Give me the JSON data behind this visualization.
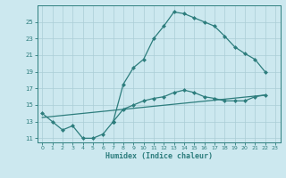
{
  "xlabel": "Humidex (Indice chaleur)",
  "bg_color": "#cce8ef",
  "grid_color": "#aacdd6",
  "line_color": "#2d7d7d",
  "line1_x": [
    0,
    1,
    2,
    3,
    4,
    5,
    6,
    7
  ],
  "line1_y": [
    14.0,
    13.0,
    12.0,
    12.5,
    11.0,
    11.0,
    11.5,
    13.0
  ],
  "line2_x": [
    7,
    8,
    9,
    10,
    11,
    12,
    13,
    14,
    15,
    16,
    17,
    18,
    19,
    20,
    21,
    22
  ],
  "line2_y": [
    13.0,
    17.5,
    19.5,
    20.5,
    23.0,
    24.5,
    26.2,
    26.0,
    25.5,
    25.0,
    24.5,
    23.3,
    22.0,
    21.2,
    20.5,
    19.0
  ],
  "line3_x": [
    7,
    8,
    9,
    10,
    11,
    12,
    13,
    14,
    15,
    16,
    17,
    18,
    19,
    20,
    21,
    22
  ],
  "line3_y": [
    13.0,
    14.5,
    15.0,
    15.5,
    15.8,
    16.0,
    16.5,
    16.8,
    16.5,
    16.0,
    15.8,
    15.5,
    15.5,
    15.5,
    16.0,
    16.2
  ],
  "line4_x": [
    0,
    22
  ],
  "line4_y": [
    13.5,
    16.2
  ],
  "ylim": [
    10.5,
    27.0
  ],
  "xlim": [
    -0.5,
    23.5
  ],
  "yticks": [
    11,
    13,
    15,
    17,
    19,
    21,
    23,
    25
  ],
  "xticks": [
    0,
    1,
    2,
    3,
    4,
    5,
    6,
    7,
    8,
    9,
    10,
    11,
    12,
    13,
    14,
    15,
    16,
    17,
    18,
    19,
    20,
    21,
    22,
    23
  ],
  "xtick_labels": [
    "0",
    "1",
    "2",
    "3",
    "4",
    "5",
    "6",
    "7",
    "8",
    "9",
    "10",
    "11",
    "12",
    "13",
    "14",
    "15",
    "16",
    "17",
    "18",
    "19",
    "20",
    "21",
    "22",
    "23"
  ]
}
